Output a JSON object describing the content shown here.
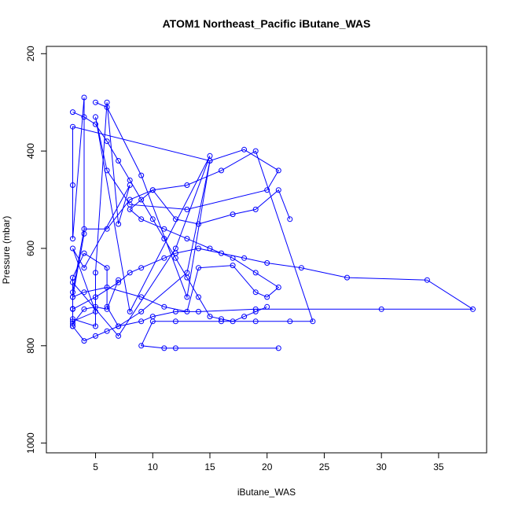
{
  "chart_data": {
    "type": "line",
    "title": "ATOM1 Northeast_Pacific iButane_WAS",
    "xlabel": "iButane_WAS",
    "ylabel": "Pressure (mbar)",
    "xlim": [
      0.7,
      39.2
    ],
    "ylim": [
      1020,
      185
    ],
    "y_reversed": true,
    "grid": false,
    "x_ticks": [
      5,
      10,
      15,
      20,
      25,
      30,
      35
    ],
    "x_tick_labels": [
      "5",
      "10",
      "15",
      "20",
      "25",
      "30",
      "35"
    ],
    "y_ticks": [
      200,
      400,
      600,
      800,
      1000
    ],
    "y_tick_labels": [
      "200",
      "400",
      "600",
      "800",
      "1000"
    ],
    "series_style": {
      "color": "#0000ff",
      "marker": "open-circle",
      "line": "solid"
    },
    "series": [
      {
        "x": [
          3,
          3,
          3,
          4,
          6,
          6,
          7,
          9,
          13,
          15,
          3,
          3,
          3,
          4,
          4,
          3,
          3,
          5,
          5,
          6,
          7,
          8,
          4,
          3,
          5,
          3,
          3,
          4,
          5,
          6,
          7
        ],
        "y": [
          760,
          724,
          660,
          610,
          640,
          720,
          760,
          730,
          650,
          420,
          350,
          470,
          580,
          290,
          570,
          700,
          745,
          760,
          650,
          300,
          550,
          470,
          640,
          600,
          730,
          750,
          755,
          725,
          720,
          725,
          665
        ]
      },
      {
        "x": [
          5,
          6,
          9,
          13,
          15,
          18,
          21,
          20,
          13,
          8,
          6,
          5,
          8,
          15,
          12,
          7,
          3,
          3,
          4,
          6,
          8,
          10,
          12,
          14,
          17,
          19,
          21,
          22
        ],
        "y": [
          300,
          310,
          450,
          700,
          420,
          397,
          440,
          480,
          520,
          510,
          440,
          330,
          730,
          410,
          600,
          780,
          670,
          690,
          560,
          560,
          500,
          480,
          540,
          550,
          530,
          520,
          480,
          540
        ]
      },
      {
        "x": [
          3,
          5,
          7,
          8,
          9,
          11,
          12,
          14,
          16,
          18,
          20,
          23,
          27,
          34,
          38,
          30,
          19,
          14,
          12,
          10,
          9,
          7,
          6,
          5,
          4,
          3
        ],
        "y": [
          725,
          700,
          670,
          650,
          640,
          620,
          610,
          600,
          610,
          620,
          630,
          640,
          660,
          665,
          725,
          725,
          725,
          730,
          730,
          740,
          750,
          760,
          770,
          780,
          790,
          760
        ]
      },
      {
        "x": [
          3,
          4,
          6,
          9,
          11,
          13,
          14,
          17,
          19,
          20,
          21,
          19,
          17,
          15,
          13,
          11,
          9,
          8,
          10,
          13,
          16,
          19,
          24,
          22,
          19,
          16,
          12,
          10,
          9,
          11,
          12,
          21
        ],
        "y": [
          700,
          690,
          680,
          700,
          720,
          730,
          640,
          635,
          690,
          700,
          680,
          650,
          620,
          600,
          580,
          560,
          540,
          520,
          480,
          470,
          440,
          400,
          750,
          750,
          750,
          750,
          750,
          750,
          800,
          805,
          805,
          805
        ]
      },
      {
        "x": [
          3,
          4,
          5,
          6,
          7,
          8,
          9,
          10,
          11,
          12,
          13,
          14,
          15,
          16,
          17,
          18,
          19,
          20
        ],
        "y": [
          320,
          330,
          345,
          380,
          420,
          460,
          500,
          540,
          580,
          620,
          660,
          700,
          740,
          745,
          750,
          740,
          730,
          720
        ]
      }
    ]
  }
}
